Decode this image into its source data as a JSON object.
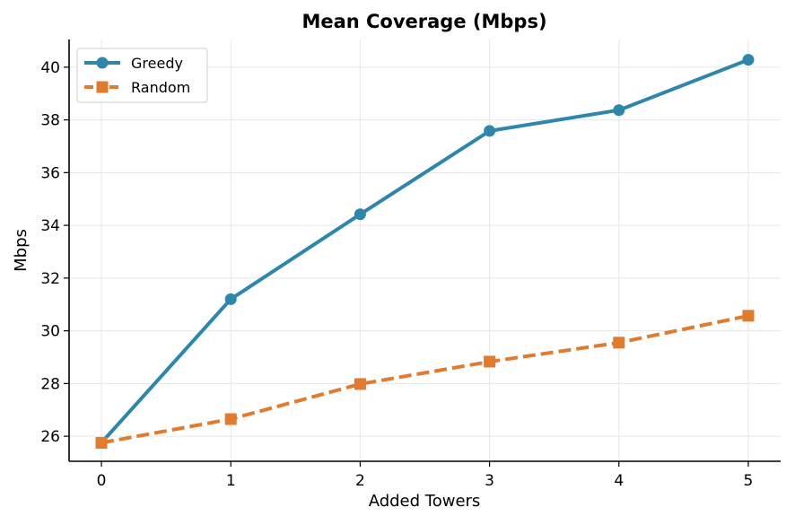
{
  "chart_data": {
    "type": "line",
    "title": "Mean Coverage (Mbps)",
    "xlabel": "Added Towers",
    "ylabel": "Mbps",
    "x": [
      0,
      1,
      2,
      3,
      4,
      5
    ],
    "xlim": [
      -0.25,
      5.25
    ],
    "ylim": [
      25.05,
      41.05
    ],
    "xticks": [
      0,
      1,
      2,
      3,
      4,
      5
    ],
    "yticks": [
      26,
      28,
      30,
      32,
      34,
      36,
      38,
      40
    ],
    "grid": true,
    "legend_position": "top-left",
    "series": [
      {
        "name": "Greedy",
        "values": [
          25.75,
          31.2,
          34.42,
          37.58,
          38.37,
          40.28
        ],
        "color": "#2E86AB",
        "marker": "circle",
        "linestyle": "solid"
      },
      {
        "name": "Random",
        "values": [
          25.75,
          26.65,
          27.98,
          28.83,
          29.55,
          30.57
        ],
        "color": "#E07B2F",
        "marker": "square",
        "linestyle": "dashed"
      }
    ]
  }
}
